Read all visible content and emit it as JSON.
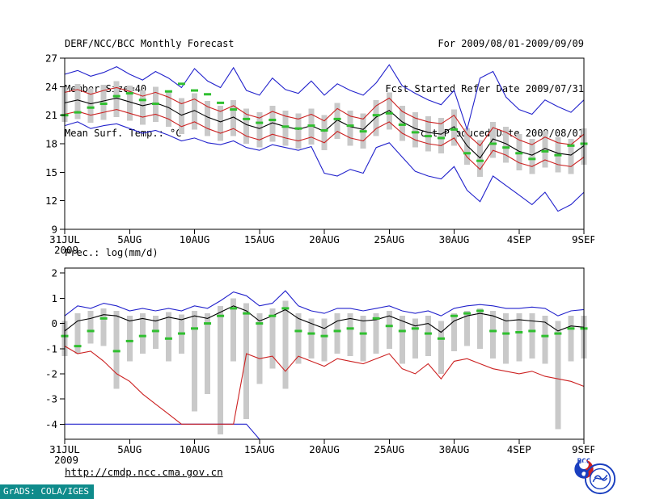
{
  "header": {
    "title": "DERF/NCC/BCC Monthly Forecast",
    "member_size": "Member Size=40",
    "variable_label": "Mean Surf. Temp.: °C",
    "forecast_range": "For 2009/08/01-2009/09/09",
    "refer_date": "Fcst Started Refer Date 2009/07/31",
    "produced_date": "Fcst Produced Date 2009/08/01"
  },
  "precip_panel_label": "Prec.: log(mm/d)",
  "footer": {
    "url": "http://cmdp.ncc.cma.gov.cn",
    "bcc_logo_text": "BCC",
    "grads_credit": "GrADS: COLA/IGES"
  },
  "colors": {
    "blue": "#2222cc",
    "red": "#cc2222",
    "black": "#000000",
    "green": "#2fbf2f",
    "bar": "#c9c9c9",
    "frame": "#000000",
    "grads_bg": "#0f8b8b",
    "logo_blue": "#1a3fbf",
    "logo_red": "#d02020"
  },
  "chart_data": [
    {
      "type": "line",
      "title": "Mean Surf. Temp.: °C",
      "xlabel": "",
      "ylabel": "°C",
      "ylim": [
        9,
        27
      ],
      "yticks": [
        9,
        12,
        15,
        18,
        21,
        24,
        27
      ],
      "n_days": 41,
      "xtick_positions": [
        0,
        5,
        10,
        15,
        20,
        25,
        30,
        35,
        40
      ],
      "xtick_labels": [
        "31JUL",
        "5AUG",
        "10AUG",
        "15AUG",
        "20AUG",
        "25AUG",
        "30AUG",
        "4SEP",
        "9SEP"
      ],
      "x_year_label": "2009",
      "bars": {
        "name": "ensemble-spread",
        "color": "bar",
        "low": [
          20.3,
          20.6,
          20.2,
          20.5,
          20.8,
          20.4,
          20.0,
          20.3,
          19.8,
          19.0,
          19.5,
          18.8,
          18.3,
          18.8,
          18.0,
          17.6,
          18.2,
          17.8,
          17.5,
          17.9,
          17.3,
          18.5,
          17.8,
          17.5,
          18.8,
          19.5,
          18.3,
          17.6,
          17.2,
          17.0,
          17.8,
          15.8,
          14.5,
          16.5,
          16.0,
          15.2,
          14.8,
          15.5,
          15.0,
          14.8,
          15.8
        ],
        "high": [
          24.0,
          24.3,
          23.8,
          24.2,
          24.6,
          24.1,
          23.6,
          24.0,
          23.5,
          22.8,
          23.3,
          22.5,
          22.0,
          22.6,
          21.7,
          21.3,
          22.0,
          21.5,
          21.2,
          21.7,
          21.0,
          22.3,
          21.5,
          21.2,
          22.6,
          23.4,
          22.0,
          21.3,
          20.9,
          20.7,
          21.6,
          19.6,
          18.4,
          20.3,
          19.8,
          19.0,
          18.5,
          19.3,
          18.7,
          18.5,
          19.6
        ]
      },
      "series": [
        {
          "name": "ensemble-max",
          "color": "blue",
          "values": [
            25.3,
            25.7,
            25.1,
            25.5,
            26.1,
            25.3,
            24.7,
            25.6,
            24.9,
            23.9,
            25.9,
            24.6,
            23.9,
            26.0,
            23.6,
            23.1,
            24.9,
            23.7,
            23.3,
            24.6,
            23.1,
            24.3,
            23.6,
            23.1,
            24.4,
            26.3,
            24.1,
            23.3,
            22.6,
            22.1,
            23.6,
            19.5,
            24.9,
            25.6,
            22.9,
            21.6,
            21.1,
            22.6,
            21.9,
            21.3,
            22.6
          ]
        },
        {
          "name": "ensemble-min",
          "color": "blue",
          "values": [
            19.9,
            20.3,
            19.6,
            19.9,
            20.1,
            19.6,
            19.1,
            19.4,
            18.9,
            18.3,
            18.6,
            18.1,
            17.9,
            18.3,
            17.6,
            17.3,
            17.9,
            17.6,
            17.3,
            17.7,
            14.9,
            14.6,
            15.3,
            14.9,
            17.6,
            18.1,
            16.6,
            15.1,
            14.6,
            14.3,
            15.6,
            13.1,
            11.9,
            14.6,
            13.6,
            12.6,
            11.6,
            12.9,
            10.9,
            11.6,
            12.9
          ]
        },
        {
          "name": "upper-quartile",
          "color": "red",
          "values": [
            23.4,
            23.7,
            23.2,
            23.6,
            23.9,
            23.5,
            23.0,
            23.4,
            22.9,
            22.2,
            22.7,
            21.9,
            21.4,
            22.0,
            21.1,
            20.7,
            21.4,
            20.9,
            20.6,
            21.1,
            20.4,
            21.7,
            20.9,
            20.6,
            22.0,
            22.8,
            21.4,
            20.7,
            20.3,
            20.1,
            21.0,
            19.0,
            17.8,
            19.7,
            19.2,
            18.4,
            17.9,
            18.7,
            18.1,
            17.9,
            19.0
          ]
        },
        {
          "name": "lower-quartile",
          "color": "red",
          "values": [
            21.1,
            21.4,
            21.0,
            21.3,
            21.6,
            21.2,
            20.8,
            21.1,
            20.6,
            19.8,
            20.3,
            19.6,
            19.1,
            19.6,
            18.8,
            18.4,
            19.0,
            18.6,
            18.3,
            18.7,
            18.1,
            19.3,
            18.6,
            18.3,
            19.6,
            20.3,
            19.1,
            18.4,
            18.0,
            17.8,
            18.6,
            16.6,
            15.3,
            17.3,
            16.8,
            16.0,
            15.6,
            16.3,
            15.8,
            15.6,
            16.6
          ]
        },
        {
          "name": "ensemble-mean",
          "color": "black",
          "values": [
            22.3,
            22.6,
            22.2,
            22.5,
            22.8,
            22.4,
            22.0,
            22.3,
            21.8,
            21.0,
            21.5,
            20.8,
            20.3,
            20.8,
            20.0,
            19.6,
            20.2,
            19.8,
            19.5,
            19.9,
            19.3,
            20.5,
            19.8,
            19.5,
            20.8,
            21.5,
            20.3,
            19.6,
            19.2,
            19.0,
            19.8,
            17.8,
            16.5,
            18.5,
            18.0,
            17.2,
            16.8,
            17.5,
            17.0,
            16.8,
            17.8
          ]
        }
      ],
      "markers": {
        "name": "observation-dash",
        "color": "green",
        "values": [
          21.0,
          21.3,
          21.8,
          22.2,
          23.0,
          23.3,
          22.6,
          22.2,
          23.5,
          24.3,
          23.6,
          23.2,
          22.3,
          21.6,
          20.6,
          20.2,
          20.5,
          19.8,
          19.6,
          19.9,
          19.4,
          20.6,
          19.9,
          19.3,
          21.0,
          21.2,
          20.0,
          19.2,
          18.8,
          18.6,
          19.5,
          17.0,
          16.2,
          18.0,
          17.6,
          17.0,
          16.4,
          17.2,
          16.8,
          17.8,
          18.0
        ]
      }
    },
    {
      "type": "line",
      "title": "Prec.: log(mm/d)",
      "xlabel": "",
      "ylabel": "log(mm/d)",
      "ylim": [
        -4.6,
        2.2
      ],
      "yticks": [
        -4,
        -3,
        -2,
        -1,
        0,
        1,
        2
      ],
      "n_days": 41,
      "xtick_positions": [
        0,
        5,
        10,
        15,
        20,
        25,
        30,
        35,
        40
      ],
      "xtick_labels": [
        "31JUL",
        "5AUG",
        "10AUG",
        "15AUG",
        "20AUG",
        "25AUG",
        "30AUG",
        "4SEP",
        "9SEP"
      ],
      "x_year_label": "2009",
      "bars": {
        "name": "ensemble-spread",
        "color": "bar",
        "low": [
          -1.3,
          -1.2,
          -0.8,
          -0.9,
          -2.6,
          -1.5,
          -1.2,
          -1.0,
          -1.5,
          -1.2,
          -3.5,
          -2.8,
          -4.4,
          -1.5,
          -3.8,
          -2.4,
          -1.8,
          -2.6,
          -1.6,
          -1.4,
          -1.5,
          -1.2,
          -1.3,
          -1.5,
          -1.2,
          -1.0,
          -1.6,
          -1.4,
          -1.3,
          -2.0,
          -1.1,
          -0.9,
          -1.0,
          -1.4,
          -1.6,
          -1.5,
          -1.4,
          -1.6,
          -4.2,
          -1.5,
          -1.4
        ],
        "high": [
          0.1,
          0.4,
          0.5,
          0.6,
          0.5,
          0.3,
          0.4,
          0.3,
          0.45,
          0.35,
          0.5,
          0.4,
          0.7,
          1.0,
          0.8,
          0.4,
          0.6,
          0.9,
          0.4,
          0.2,
          0.2,
          0.4,
          0.4,
          0.3,
          0.4,
          0.5,
          0.3,
          0.2,
          0.3,
          0.1,
          0.4,
          0.5,
          0.6,
          0.5,
          0.4,
          0.4,
          0.4,
          0.3,
          0.1,
          0.3,
          0.3
        ]
      },
      "series": [
        {
          "name": "ensemble-max",
          "color": "blue",
          "values": [
            0.3,
            0.7,
            0.6,
            0.8,
            0.7,
            0.5,
            0.6,
            0.5,
            0.6,
            0.5,
            0.7,
            0.6,
            0.9,
            1.25,
            1.1,
            0.7,
            0.8,
            1.3,
            0.7,
            0.5,
            0.4,
            0.6,
            0.6,
            0.5,
            0.6,
            0.7,
            0.5,
            0.4,
            0.5,
            0.3,
            0.6,
            0.7,
            0.75,
            0.7,
            0.6,
            0.6,
            0.65,
            0.6,
            0.3,
            0.5,
            0.55
          ]
        },
        {
          "name": "ensemble-min",
          "color": "blue",
          "values": [
            -4,
            -4,
            -4,
            -4,
            -4,
            -4,
            -4,
            -4,
            -4,
            -4,
            -4,
            -4,
            -4,
            -4,
            -4,
            -4.8,
            -4.8,
            -4.8,
            -4.8,
            -4.8,
            -4.8,
            -4.8,
            -4.8,
            -4.8,
            -4.8,
            -4.8,
            -4.8,
            -4.8,
            -4.8,
            -4.8,
            -4.8,
            -4.8,
            -4.8,
            -4.8,
            -4.8,
            -4.8,
            -4.8,
            -4.8,
            -4.8,
            -4.8,
            -4.8
          ]
        },
        {
          "name": "lower-quartile",
          "color": "red",
          "values": [
            -0.9,
            -1.2,
            -1.1,
            -1.5,
            -2.0,
            -2.3,
            -2.8,
            -3.2,
            -3.6,
            -4.0,
            -4.0,
            -4.0,
            -4.0,
            -4.0,
            -1.2,
            -1.4,
            -1.3,
            -1.9,
            -1.3,
            -1.5,
            -1.7,
            -1.4,
            -1.5,
            -1.6,
            -1.4,
            -1.2,
            -1.8,
            -2.0,
            -1.6,
            -2.2,
            -1.5,
            -1.4,
            -1.6,
            -1.8,
            -1.9,
            -2.0,
            -1.9,
            -2.1,
            -2.2,
            -2.3,
            -2.5
          ]
        },
        {
          "name": "ensemble-mean",
          "color": "black",
          "values": [
            -0.3,
            0.1,
            0.2,
            0.35,
            0.3,
            0.1,
            0.2,
            0.1,
            0.25,
            0.15,
            0.3,
            0.2,
            0.45,
            0.7,
            0.5,
            0.1,
            0.3,
            0.55,
            0.2,
            0.0,
            -0.2,
            0.1,
            0.2,
            0.1,
            0.15,
            0.3,
            0.1,
            -0.1,
            0.0,
            -0.35,
            0.1,
            0.3,
            0.4,
            0.3,
            0.1,
            0.15,
            0.1,
            0.05,
            -0.3,
            -0.1,
            -0.15
          ]
        }
      ],
      "markers": {
        "name": "observation-dash",
        "color": "green",
        "values": [
          -0.5,
          -0.9,
          -0.3,
          0.2,
          -1.1,
          -0.7,
          -0.5,
          -0.3,
          -0.6,
          -0.4,
          -0.2,
          0.0,
          0.3,
          0.6,
          0.4,
          0.0,
          0.3,
          0.6,
          -0.3,
          -0.4,
          -0.5,
          -0.3,
          -0.2,
          -0.4,
          0.2,
          -0.1,
          -0.3,
          -0.2,
          -0.4,
          -0.6,
          0.3,
          0.4,
          0.5,
          -0.3,
          -0.4,
          -0.35,
          -0.3,
          -0.5,
          -0.4,
          -0.2,
          -0.2
        ]
      }
    }
  ]
}
